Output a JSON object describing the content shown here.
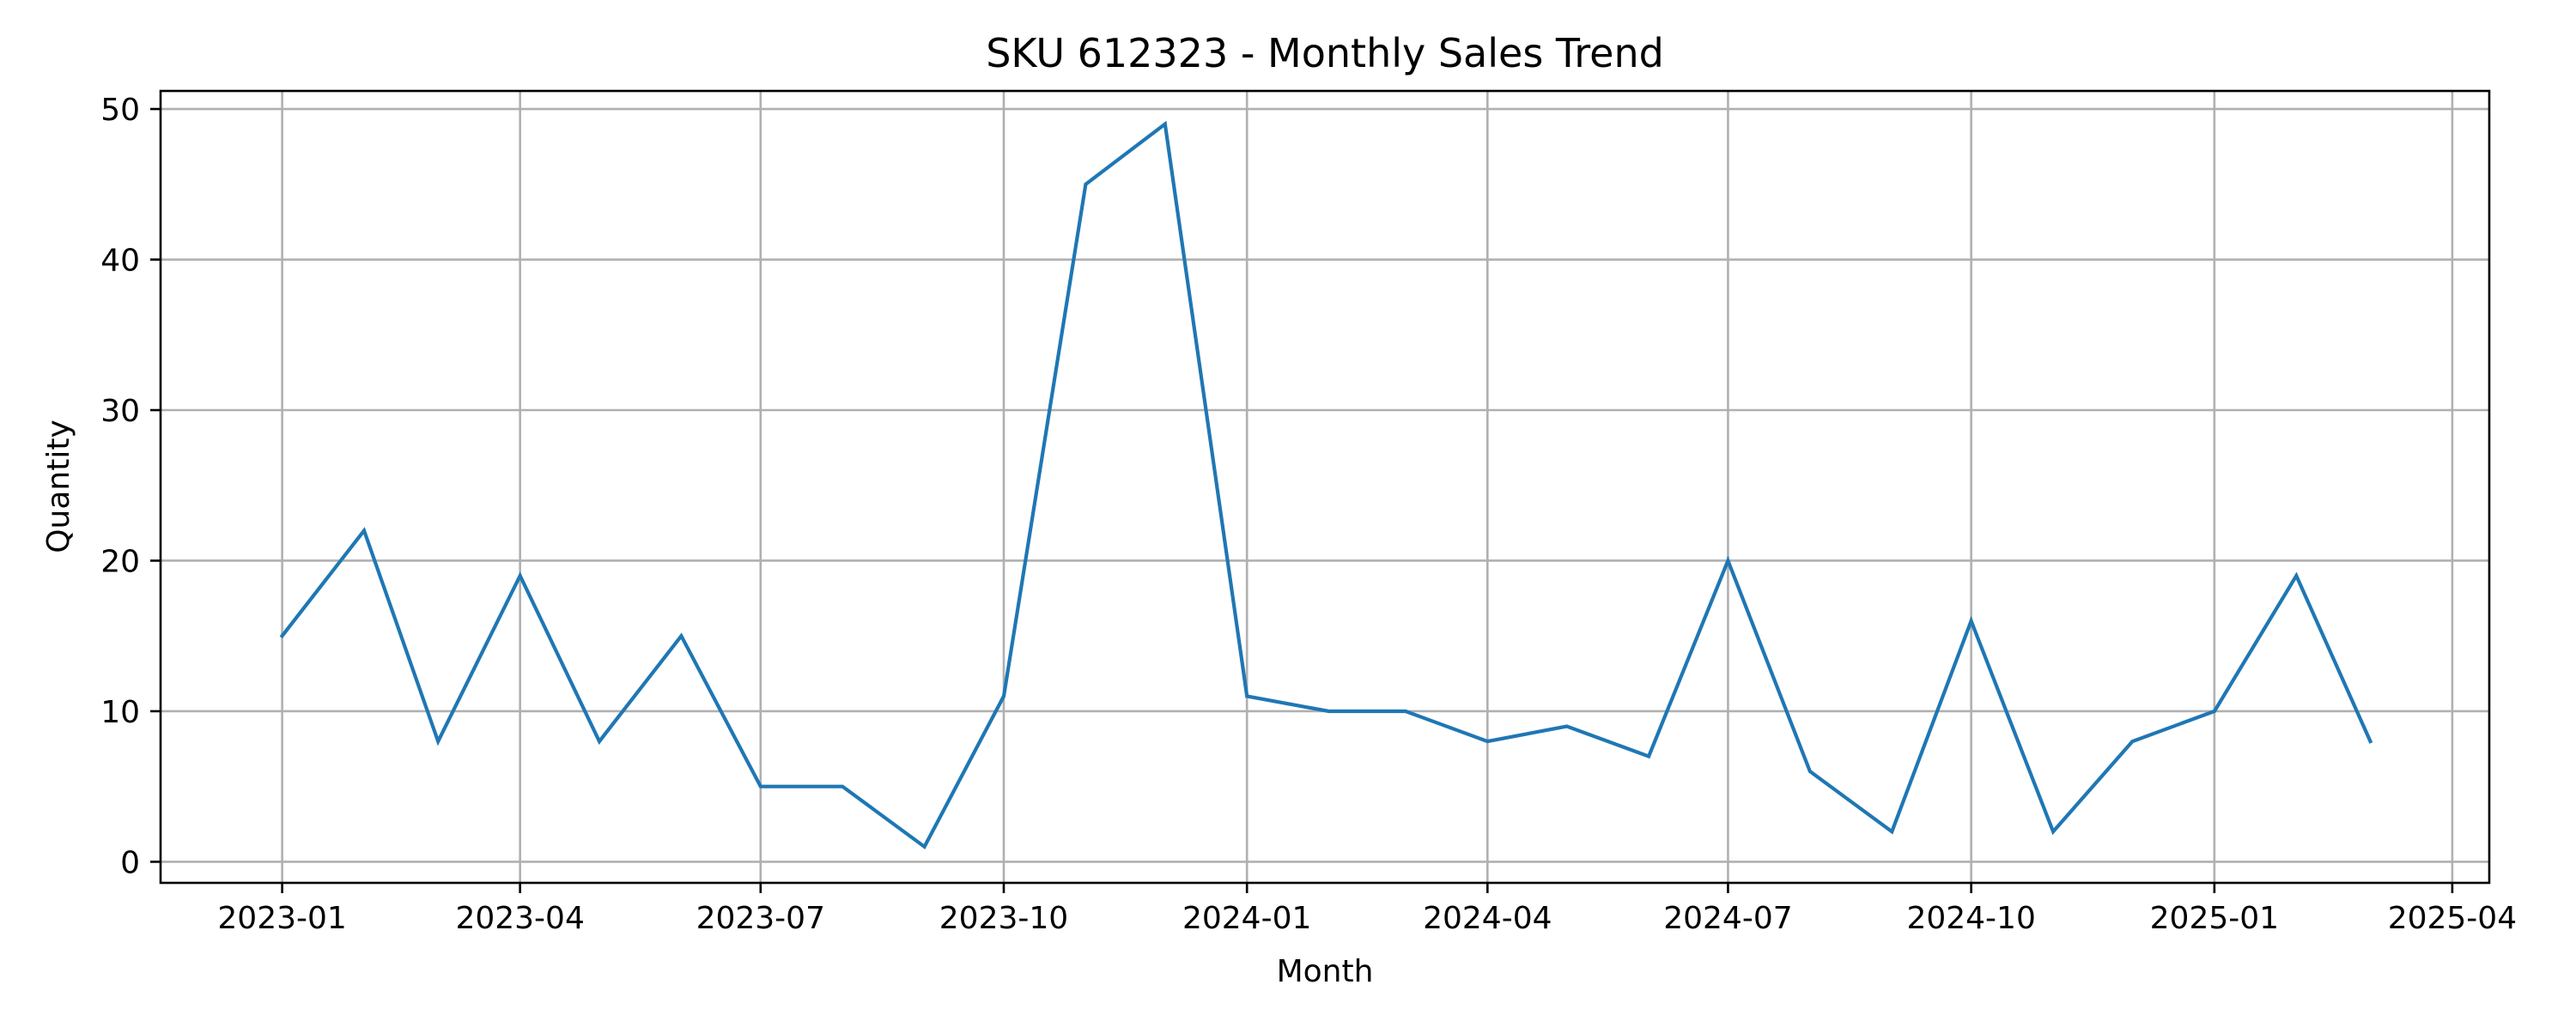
{
  "chart_data": {
    "type": "line",
    "title": "SKU 612323 - Monthly Sales Trend",
    "xlabel": "Month",
    "ylabel": "Quantity",
    "x_axis": {
      "scale": "date",
      "range": [
        "2022-11-16",
        "2025-04-15"
      ],
      "ticks": [
        {
          "date": "2023-01-01",
          "label": "2023-01"
        },
        {
          "date": "2023-04-01",
          "label": "2023-04"
        },
        {
          "date": "2023-07-01",
          "label": "2023-07"
        },
        {
          "date": "2023-10-01",
          "label": "2023-10"
        },
        {
          "date": "2024-01-01",
          "label": "2024-01"
        },
        {
          "date": "2024-04-01",
          "label": "2024-04"
        },
        {
          "date": "2024-07-01",
          "label": "2024-07"
        },
        {
          "date": "2024-10-01",
          "label": "2024-10"
        },
        {
          "date": "2025-01-01",
          "label": "2025-01"
        },
        {
          "date": "2025-04-01",
          "label": "2025-04"
        }
      ]
    },
    "y_axis": {
      "range": [
        -1.4,
        51.2
      ],
      "ticks": [
        0,
        10,
        20,
        30,
        40,
        50
      ]
    },
    "grid": true,
    "legend": "none",
    "series": [
      {
        "color": "#1f77b4",
        "x": [
          "2023-01-01",
          "2023-02-01",
          "2023-03-01",
          "2023-04-01",
          "2023-05-01",
          "2023-06-01",
          "2023-07-01",
          "2023-08-01",
          "2023-09-01",
          "2023-10-01",
          "2023-11-01",
          "2023-12-01",
          "2024-01-01",
          "2024-02-01",
          "2024-03-01",
          "2024-04-01",
          "2024-05-01",
          "2024-06-01",
          "2024-07-01",
          "2024-08-01",
          "2024-09-01",
          "2024-10-01",
          "2024-11-01",
          "2024-12-01",
          "2025-01-01",
          "2025-02-01",
          "2025-03-01"
        ],
        "values": [
          15,
          22,
          8,
          19,
          8,
          15,
          5,
          5,
          1,
          11,
          45,
          49,
          11,
          10,
          10,
          8,
          9,
          7,
          20,
          6,
          2,
          16,
          2,
          8,
          10,
          19,
          8
        ]
      }
    ]
  }
}
